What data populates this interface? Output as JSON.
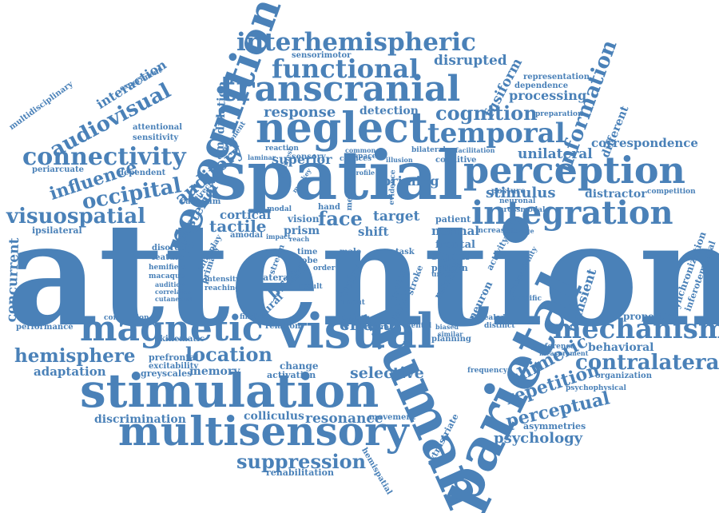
{
  "color": "#4a81b8",
  "words": [
    {
      "text": "attention",
      "weight": 1.0
    },
    {
      "text": "spatial",
      "weight": 0.55
    },
    {
      "text": "human",
      "weight": 0.5
    },
    {
      "text": "parietal",
      "weight": 0.48
    },
    {
      "text": "stimulation",
      "weight": 0.44
    },
    {
      "text": "recognition",
      "weight": 0.4
    },
    {
      "text": "visual",
      "weight": 0.4
    },
    {
      "text": "multisensory",
      "weight": 0.36
    },
    {
      "text": "neglect",
      "weight": 0.34
    },
    {
      "text": "perception",
      "weight": 0.33
    },
    {
      "text": "magnetic",
      "weight": 0.33
    },
    {
      "text": "transcranial",
      "weight": 0.3
    },
    {
      "text": "integration",
      "weight": 0.3
    },
    {
      "text": "temporal",
      "weight": 0.26
    },
    {
      "text": "mechanism",
      "weight": 0.26
    },
    {
      "text": "interhemispheric",
      "weight": 0.24
    },
    {
      "text": "functional",
      "weight": 0.24
    },
    {
      "text": "connectivity",
      "weight": 0.22
    },
    {
      "text": "information",
      "weight": 0.2
    },
    {
      "text": "contralateral",
      "weight": 0.2
    },
    {
      "text": "visuospatial",
      "weight": 0.2
    },
    {
      "text": "audiovisual",
      "weight": 0.2
    },
    {
      "text": "occipital",
      "weight": 0.2
    },
    {
      "text": "hemisphere",
      "weight": 0.18
    },
    {
      "text": "cognition",
      "weight": 0.18
    },
    {
      "text": "location",
      "weight": 0.18
    },
    {
      "text": "suppression",
      "weight": 0.17
    },
    {
      "text": "perceptual",
      "weight": 0.17
    },
    {
      "text": "repetition",
      "weight": 0.17
    },
    {
      "text": "chimeric",
      "weight": 0.17
    },
    {
      "text": "face",
      "weight": 0.17
    },
    {
      "text": "selective",
      "weight": 0.16
    },
    {
      "text": "effect",
      "weight": 0.16
    },
    {
      "text": "influence",
      "weight": 0.15
    },
    {
      "text": "auditory",
      "weight": 0.15
    },
    {
      "text": "psychology",
      "weight": 0.15
    },
    {
      "text": "stimulus",
      "weight": 0.14
    },
    {
      "text": "response",
      "weight": 0.14
    },
    {
      "text": "resonance",
      "weight": 0.14
    },
    {
      "text": "tactile",
      "weight": 0.14
    },
    {
      "text": "unilateral",
      "weight": 0.14
    },
    {
      "text": "disrupted",
      "weight": 0.13
    },
    {
      "text": "processing",
      "weight": 0.13
    },
    {
      "text": "correspondence",
      "weight": 0.13
    },
    {
      "text": "fusiform",
      "weight": 0.13
    },
    {
      "text": "concurrent",
      "weight": 0.13
    },
    {
      "text": "interaction",
      "weight": 0.13
    },
    {
      "text": "adaptation",
      "weight": 0.12
    },
    {
      "text": "discrimination",
      "weight": 0.12
    },
    {
      "text": "colliculus",
      "weight": 0.12
    },
    {
      "text": "behavioral",
      "weight": 0.12
    },
    {
      "text": "memory",
      "weight": 0.12
    },
    {
      "text": "distractor",
      "weight": 0.12
    },
    {
      "text": "target",
      "weight": 0.12
    },
    {
      "text": "priming",
      "weight": 0.12
    },
    {
      "text": "posterior",
      "weight": 0.12
    },
    {
      "text": "brain",
      "weight": 0.12
    },
    {
      "text": "modulation",
      "weight": 0.11
    },
    {
      "text": "superior",
      "weight": 0.11
    },
    {
      "text": "transient",
      "weight": 0.11
    },
    {
      "text": "different",
      "weight": 0.11
    },
    {
      "text": "detection",
      "weight": 0.11
    },
    {
      "text": "cortical",
      "weight": 0.11
    },
    {
      "text": "prism",
      "weight": 0.11
    },
    {
      "text": "normal",
      "weight": 0.1
    },
    {
      "text": "signal",
      "weight": 0.1
    },
    {
      "text": "rivalry",
      "weight": 0.1
    },
    {
      "text": "change",
      "weight": 0.1
    },
    {
      "text": "activation",
      "weight": 0.1
    },
    {
      "text": "vision",
      "weight": 0.1
    },
    {
      "text": "shift",
      "weight": 0.1
    },
    {
      "text": "frontal",
      "weight": 0.1
    },
    {
      "text": "neuron",
      "weight": 0.1
    },
    {
      "text": "neural",
      "weight": 0.1
    },
    {
      "text": "properties",
      "weight": 0.1
    },
    {
      "text": "synchronization",
      "weight": 0.1
    },
    {
      "text": "inferotemporal",
      "weight": 0.1
    },
    {
      "text": "extrastriate",
      "weight": 0.09
    },
    {
      "text": "hemispatial",
      "weight": 0.09
    },
    {
      "text": "rehabilitation",
      "weight": 0.09
    },
    {
      "text": "movement",
      "weight": 0.09
    },
    {
      "text": "asymmetries",
      "weight": 0.09
    },
    {
      "text": "psychophysical",
      "weight": 0.08
    },
    {
      "text": "organization",
      "weight": 0.08
    },
    {
      "text": "preference",
      "weight": 0.08
    },
    {
      "text": "representation",
      "weight": 0.08
    },
    {
      "text": "dependence",
      "weight": 0.08
    },
    {
      "text": "preparation",
      "weight": 0.08
    },
    {
      "text": "sensorimotor",
      "weight": 0.08
    },
    {
      "text": "experiment",
      "weight": 0.08
    },
    {
      "text": "multidisciplinary",
      "weight": 0.08
    },
    {
      "text": "attentional",
      "weight": 0.08
    },
    {
      "text": "sensitivity",
      "weight": 0.08
    },
    {
      "text": "periarcuate",
      "weight": 0.08
    },
    {
      "text": "dependent",
      "weight": 0.08
    },
    {
      "text": "ipsilateral",
      "weight": 0.08
    },
    {
      "text": "performance",
      "weight": 0.08
    },
    {
      "text": "greyscales",
      "weight": 0.08
    },
    {
      "text": "prefrontal",
      "weight": 0.08
    },
    {
      "text": "excitability",
      "weight": 0.08
    },
    {
      "text": "kinematic",
      "weight": 0.08
    },
    {
      "text": "completion",
      "weight": 0.08
    },
    {
      "text": "lateral",
      "weight": 0.08
    },
    {
      "text": "planning",
      "weight": 0.08
    },
    {
      "text": "region",
      "weight": 0.08
    },
    {
      "text": "relation",
      "weight": 0.08
    },
    {
      "text": "finding",
      "weight": 0.08
    },
    {
      "text": "task",
      "weight": 0.08
    },
    {
      "text": "male",
      "weight": 0.08
    },
    {
      "text": "sensory",
      "weight": 0.08
    },
    {
      "text": "space",
      "weight": 0.08
    },
    {
      "text": "hand",
      "weight": 0.08
    },
    {
      "text": "reaction",
      "weight": 0.08
    },
    {
      "text": "laminar",
      "weight": 0.08
    },
    {
      "text": "component",
      "weight": 0.08
    },
    {
      "text": "modal",
      "weight": 0.08
    },
    {
      "text": "time",
      "weight": 0.08
    },
    {
      "text": "lobe",
      "weight": 0.08
    },
    {
      "text": "amodal",
      "weight": 0.08
    },
    {
      "text": "callosum",
      "weight": 0.08
    },
    {
      "text": "primary",
      "weight": 0.08
    },
    {
      "text": "interplay",
      "weight": 0.08
    },
    {
      "text": "disorder",
      "weight": 0.08
    },
    {
      "text": "feature",
      "weight": 0.08
    },
    {
      "text": "hemifield",
      "weight": 0.08
    },
    {
      "text": "macaque",
      "weight": 0.08
    },
    {
      "text": "audition",
      "weight": 0.08
    },
    {
      "text": "correlated",
      "weight": 0.08
    },
    {
      "text": "cutaneous",
      "weight": 0.08
    },
    {
      "text": "intensity",
      "weight": 0.08
    },
    {
      "text": "reaching",
      "weight": 0.08
    },
    {
      "text": "related",
      "weight": 0.08
    },
    {
      "text": "pattern",
      "weight": 0.08
    },
    {
      "text": "patient",
      "weight": 0.08
    },
    {
      "text": "posture",
      "weight": 0.08
    },
    {
      "text": "cognitive",
      "weight": 0.08
    },
    {
      "text": "bilateral",
      "weight": 0.08
    },
    {
      "text": "facilitation",
      "weight": 0.08
    },
    {
      "text": "neuronal",
      "weight": 0.08
    },
    {
      "text": "crossmodal",
      "weight": 0.08
    },
    {
      "text": "competition",
      "weight": 0.08
    },
    {
      "text": "increase",
      "weight": 0.08
    },
    {
      "text": "storage",
      "weight": 0.08
    },
    {
      "text": "activity",
      "weight": 0.08
    },
    {
      "text": "compatibility",
      "weight": 0.08
    },
    {
      "text": "specific",
      "weight": 0.08
    },
    {
      "text": "revealed",
      "weight": 0.08
    },
    {
      "text": "distinct",
      "weight": 0.08
    },
    {
      "text": "measurement",
      "weight": 0.08
    },
    {
      "text": "frequency",
      "weight": 0.08
    },
    {
      "text": "evidence",
      "weight": 0.08
    },
    {
      "text": "illusion",
      "weight": 0.08
    },
    {
      "text": "median",
      "weight": 0.08
    },
    {
      "text": "cortices",
      "weight": 0.08
    },
    {
      "text": "unseen",
      "weight": 0.08
    },
    {
      "text": "mental",
      "weight": 0.08
    },
    {
      "text": "biased",
      "weight": 0.08
    },
    {
      "text": "similar",
      "weight": 0.08
    },
    {
      "text": "female",
      "weight": 0.08
    },
    {
      "text": "motor",
      "weight": 0.08
    },
    {
      "text": "stroke",
      "weight": 0.08
    },
    {
      "text": "directed",
      "weight": 0.08
    },
    {
      "text": "impact",
      "weight": 0.08
    },
    {
      "text": "reach",
      "weight": 0.08
    },
    {
      "text": "ventral",
      "weight": 0.08
    },
    {
      "text": "result",
      "weight": 0.08
    },
    {
      "text": "input",
      "weight": 0.08
    },
    {
      "text": "manifest",
      "weight": 0.08
    },
    {
      "text": "monkey",
      "weight": 0.08
    },
    {
      "text": "common",
      "weight": 0.08
    },
    {
      "text": "profile",
      "weight": 0.08
    },
    {
      "text": "nerve",
      "weight": 0.08
    },
    {
      "text": "stream",
      "weight": 0.08
    },
    {
      "text": "order",
      "weight": 0.08
    }
  ]
}
